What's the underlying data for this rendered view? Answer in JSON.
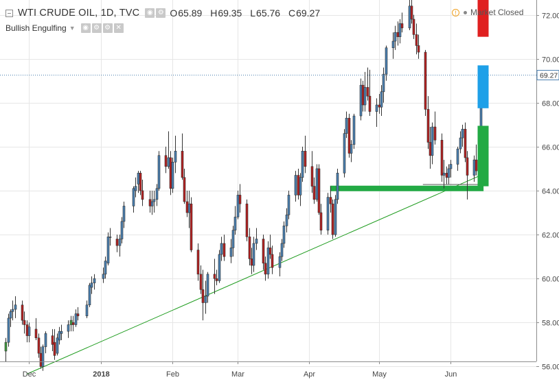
{
  "header": {
    "title": "WTI CRUDE OIL, 1D, TVC",
    "ohlc": [
      {
        "k": "O",
        "v": "65.89"
      },
      {
        "k": "H",
        "v": "69.35"
      },
      {
        "k": "L",
        "v": "65.76"
      },
      {
        "k": "C",
        "v": "69.27"
      }
    ],
    "indicator": "Bullish Engulfing",
    "market_status": "Market Closed",
    "icons": [
      "collapse-icon",
      "eye-icon",
      "settings-icon",
      "close-icon",
      "clock-icon"
    ]
  },
  "chart_data": {
    "type": "candlestick",
    "title": "WTI CRUDE OIL, 1D, TVC",
    "x_tick_labels": [
      {
        "label": "Dec",
        "day": 0
      },
      {
        "label": "2018",
        "day": 31
      },
      {
        "label": "Feb",
        "day": 62
      },
      {
        "label": "Mar",
        "day": 90
      },
      {
        "label": "Apr",
        "day": 121
      },
      {
        "label": "May",
        "day": 151
      },
      {
        "label": "Jun",
        "day": 182
      }
    ],
    "y_ticks": [
      "56.00",
      "58.00",
      "60.00",
      "62.00",
      "64.00",
      "66.00",
      "68.00",
      "70.00",
      "72.00"
    ],
    "ylim": [
      55.1,
      73.9
    ],
    "last_price": "69.27",
    "colors": {
      "up": "#4a7fb0",
      "down": "#b32020",
      "bull": "#3f9a3f",
      "grid": "#e6e6e6",
      "trend": "#1a9a1a"
    },
    "candles": [
      [
        -10,
        56.7,
        57.3,
        56.2,
        57.1
      ],
      [
        -9,
        57.1,
        58.4,
        56.9,
        58.2
      ],
      [
        -8,
        58.2,
        58.6,
        57.8,
        58.5
      ],
      [
        -7,
        58.5,
        59.0,
        58.1,
        58.6
      ],
      [
        -6,
        58.6,
        59.2,
        58.2,
        58.8
      ],
      [
        -3,
        58.8,
        59.0,
        57.9,
        58.1
      ],
      [
        -2,
        58.1,
        58.5,
        57.5,
        57.9
      ],
      [
        -1,
        57.9,
        58.1,
        57.1,
        57.4
      ],
      [
        0,
        57.4,
        58.0,
        57.1,
        57.8
      ],
      [
        3,
        57.7,
        58.2,
        57.2,
        57.3
      ],
      [
        4,
        57.3,
        57.5,
        56.4,
        56.6
      ],
      [
        5,
        56.6,
        56.9,
        55.9,
        56.0
      ],
      [
        6,
        56.0,
        57.0,
        55.8,
        56.9
      ],
      [
        7,
        56.9,
        57.6,
        56.6,
        57.5
      ],
      [
        10,
        57.4,
        57.7,
        56.7,
        57.0
      ],
      [
        11,
        57.1,
        57.7,
        56.3,
        56.5
      ],
      [
        12,
        56.6,
        57.5,
        56.5,
        57.3
      ],
      [
        13,
        57.2,
        57.8,
        57.0,
        57.6
      ],
      [
        14,
        57.5,
        57.9,
        57.2,
        57.6
      ],
      [
        17,
        57.6,
        58.1,
        57.3,
        57.9
      ],
      [
        18,
        57.9,
        58.3,
        57.6,
        58.1
      ],
      [
        19,
        58.0,
        58.3,
        57.6,
        57.9
      ],
      [
        20,
        57.9,
        58.6,
        57.8,
        58.4
      ],
      [
        21,
        58.4,
        58.7,
        58.1,
        58.3
      ],
      [
        25,
        58.3,
        59.0,
        58.2,
        58.8
      ],
      [
        26,
        58.8,
        59.8,
        58.7,
        59.7
      ],
      [
        27,
        59.6,
        60.1,
        59.3,
        59.8
      ],
      [
        28,
        59.8,
        60.2,
        59.5,
        60.0
      ],
      [
        32,
        60.0,
        60.5,
        59.8,
        60.2
      ],
      [
        33,
        60.2,
        61.0,
        60.0,
        60.8
      ],
      [
        34,
        60.7,
        62.1,
        60.6,
        61.9
      ],
      [
        35,
        61.9,
        62.3,
        61.5,
        61.9
      ],
      [
        38,
        61.8,
        62.0,
        61.2,
        61.5
      ],
      [
        39,
        61.5,
        62.0,
        61.0,
        61.8
      ],
      [
        40,
        61.8,
        62.8,
        61.6,
        62.6
      ],
      [
        41,
        62.6,
        63.5,
        62.3,
        63.3
      ],
      [
        45,
        63.3,
        64.2,
        63.0,
        64.1
      ],
      [
        46,
        64.0,
        64.6,
        63.7,
        64.2
      ],
      [
        47,
        64.3,
        64.9,
        63.9,
        64.8
      ],
      [
        48,
        64.8,
        64.9,
        63.8,
        64.0
      ],
      [
        49,
        64.0,
        64.5,
        63.3,
        63.6
      ],
      [
        52,
        63.6,
        64.0,
        63.0,
        63.3
      ],
      [
        53,
        63.3,
        64.0,
        62.9,
        63.5
      ],
      [
        54,
        63.5,
        64.0,
        63.0,
        63.6
      ],
      [
        55,
        63.6,
        64.3,
        63.3,
        64.1
      ],
      [
        56,
        64.1,
        65.8,
        64.0,
        65.6
      ],
      [
        59,
        65.6,
        66.0,
        64.8,
        65.1
      ],
      [
        60,
        65.1,
        66.7,
        65.0,
        65.5
      ],
      [
        61,
        65.5,
        65.8,
        63.8,
        64.1
      ],
      [
        62,
        64.1,
        65.5,
        63.9,
        65.3
      ],
      [
        63,
        65.3,
        66.5,
        64.8,
        65.8
      ],
      [
        66,
        65.8,
        66.6,
        64.5,
        64.6
      ],
      [
        67,
        64.6,
        65.0,
        63.4,
        63.5
      ],
      [
        68,
        63.5,
        64.0,
        62.8,
        63.0
      ],
      [
        69,
        63.0,
        64.0,
        62.3,
        63.4
      ],
      [
        70,
        63.4,
        63.7,
        61.2,
        61.3
      ],
      [
        73,
        61.3,
        61.6,
        59.9,
        60.2
      ],
      [
        74,
        60.2,
        60.6,
        59.3,
        59.5
      ],
      [
        75,
        59.5,
        60.4,
        58.1,
        58.9
      ],
      [
        76,
        58.9,
        59.9,
        58.4,
        59.2
      ],
      [
        77,
        59.2,
        60.3,
        58.9,
        60.2
      ],
      [
        80,
        60.2,
        60.9,
        59.3,
        60.0
      ],
      [
        81,
        60.0,
        60.4,
        59.7,
        59.9
      ],
      [
        82,
        59.9,
        61.3,
        59.8,
        61.1
      ],
      [
        83,
        61.1,
        61.9,
        60.8,
        61.6
      ],
      [
        84,
        61.6,
        62.0,
        60.8,
        61.0
      ],
      [
        87,
        61.0,
        61.8,
        60.7,
        61.4
      ],
      [
        88,
        61.4,
        62.4,
        61.0,
        62.2
      ],
      [
        89,
        62.2,
        63.3,
        62.0,
        62.8
      ],
      [
        90,
        62.8,
        64.0,
        62.7,
        63.8
      ],
      [
        91,
        63.8,
        64.3,
        63.0,
        63.4
      ],
      [
        94,
        63.4,
        63.6,
        61.7,
        61.9
      ],
      [
        95,
        61.9,
        62.3,
        60.6,
        60.9
      ],
      [
        96,
        60.9,
        61.4,
        60.2,
        60.6
      ],
      [
        97,
        60.6,
        61.9,
        60.3,
        61.6
      ],
      [
        98,
        61.6,
        62.3,
        61.3,
        61.8
      ],
      [
        101,
        61.8,
        62.0,
        60.4,
        60.7
      ],
      [
        102,
        60.7,
        61.0,
        59.9,
        60.2
      ],
      [
        103,
        60.2,
        61.7,
        60.0,
        61.4
      ],
      [
        104,
        61.4,
        62.0,
        60.9,
        61.1
      ],
      [
        105,
        61.1,
        61.5,
        60.2,
        60.5
      ],
      [
        108,
        60.5,
        61.2,
        60.1,
        61.0
      ],
      [
        109,
        61.0,
        61.8,
        60.8,
        61.6
      ],
      [
        110,
        61.6,
        62.6,
        61.4,
        62.4
      ],
      [
        111,
        62.4,
        63.2,
        62.1,
        62.9
      ],
      [
        112,
        62.9,
        64.0,
        62.7,
        63.8
      ],
      [
        115,
        63.8,
        64.9,
        63.5,
        64.7
      ],
      [
        116,
        64.7,
        65.0,
        63.6,
        63.8
      ],
      [
        117,
        63.8,
        64.8,
        63.3,
        64.6
      ],
      [
        118,
        64.6,
        66.0,
        64.4,
        65.8
      ],
      [
        119,
        65.8,
        66.5,
        64.8,
        65.1
      ],
      [
        122,
        65.1,
        65.8,
        63.9,
        64.2
      ],
      [
        123,
        64.2,
        64.6,
        63.4,
        63.6
      ],
      [
        124,
        63.6,
        65.2,
        63.5,
        65.0
      ],
      [
        125,
        65.0,
        65.2,
        62.9,
        63.0
      ],
      [
        126,
        63.0,
        63.4,
        62.0,
        62.2
      ],
      [
        129,
        62.2,
        63.9,
        62.0,
        63.7
      ],
      [
        130,
        63.7,
        64.2,
        63.0,
        63.4
      ],
      [
        131,
        63.4,
        63.6,
        61.8,
        62.0
      ],
      [
        132,
        62.0,
        63.8,
        61.9,
        63.6
      ],
      [
        133,
        63.6,
        65.0,
        63.4,
        64.8
      ],
      [
        136,
        64.8,
        66.8,
        64.6,
        66.6
      ],
      [
        137,
        66.6,
        67.6,
        66.4,
        67.3
      ],
      [
        138,
        67.3,
        67.5,
        65.5,
        65.7
      ],
      [
        139,
        65.7,
        66.3,
        65.3,
        66.1
      ],
      [
        140,
        66.1,
        67.5,
        65.9,
        67.4
      ],
      [
        143,
        67.4,
        69.1,
        67.2,
        68.8
      ],
      [
        144,
        68.8,
        69.0,
        67.6,
        67.9
      ],
      [
        145,
        67.9,
        69.4,
        67.6,
        68.7
      ],
      [
        146,
        68.7,
        69.6,
        68.1,
        68.3
      ],
      [
        147,
        68.3,
        69.5,
        67.4,
        67.6
      ],
      [
        150,
        67.6,
        68.2,
        66.9,
        67.9
      ],
      [
        151,
        67.9,
        68.4,
        67.5,
        67.8
      ],
      [
        152,
        67.8,
        68.8,
        67.4,
        68.5
      ],
      [
        153,
        68.5,
        69.6,
        68.0,
        69.3
      ],
      [
        154,
        69.3,
        70.6,
        69.0,
        70.5
      ],
      [
        157,
        70.5,
        71.2,
        70.0,
        70.8
      ],
      [
        158,
        70.8,
        71.5,
        70.4,
        71.2
      ],
      [
        159,
        71.2,
        71.7,
        70.6,
        71.0
      ],
      [
        160,
        71.0,
        71.8,
        70.7,
        71.6
      ],
      [
        161,
        71.6,
        72.1,
        71.2,
        71.4
      ],
      [
        164,
        71.4,
        72.7,
        71.3,
        72.4
      ],
      [
        165,
        72.4,
        72.9,
        71.6,
        71.8
      ],
      [
        166,
        71.8,
        72.0,
        70.9,
        71.1
      ],
      [
        167,
        71.1,
        71.6,
        70.2,
        70.6
      ],
      [
        168,
        70.6,
        71.1,
        70.0,
        70.3
      ],
      [
        171,
        70.3,
        70.4,
        67.4,
        67.7
      ],
      [
        172,
        67.7,
        68.3,
        65.9,
        66.2
      ],
      [
        173,
        66.2,
        66.9,
        65.0,
        65.6
      ],
      [
        174,
        65.6,
        67.1,
        65.2,
        66.9
      ],
      [
        175,
        66.9,
        67.6,
        66.1,
        66.3
      ],
      [
        178,
        66.3,
        66.6,
        64.4,
        64.7
      ],
      [
        179,
        64.7,
        65.4,
        64.1,
        64.8
      ],
      [
        180,
        64.8,
        65.1,
        64.3,
        64.6
      ],
      [
        181,
        64.6,
        65.2,
        64.3,
        65.0
      ],
      [
        182,
        65.0,
        65.4,
        64.6,
        65.2
      ],
      [
        185,
        65.2,
        66.0,
        64.9,
        65.9
      ],
      [
        186,
        65.9,
        66.7,
        65.7,
        66.4
      ],
      [
        187,
        66.4,
        67.0,
        66.0,
        66.8
      ],
      [
        188,
        66.8,
        67.1,
        65.3,
        65.5
      ],
      [
        189,
        65.5,
        65.8,
        63.6,
        64.7
      ],
      [
        192,
        64.7,
        65.6,
        64.4,
        65.4
      ],
      [
        193,
        65.4,
        66.1,
        64.7,
        64.9
      ],
      [
        194,
        64.9,
        66.0,
        64.7,
        65.9
      ],
      [
        195,
        65.9,
        69.35,
        65.76,
        69.27
      ]
    ],
    "trendline": [
      [
        -1,
        55.65
      ],
      [
        195,
        64.7
      ]
    ],
    "support_marker": [
      [
        130,
        64.1
      ],
      [
        195,
        64.1
      ]
    ],
    "overlays": [
      {
        "type": "hline",
        "from_day": 163,
        "to_day": 196,
        "y": 72.85,
        "color": "#e02020"
      },
      {
        "type": "vbar",
        "day": 196,
        "y1": 73.2,
        "y2": 71.0,
        "color": "#e02020"
      },
      {
        "type": "vbar",
        "day": 196,
        "y1": 69.7,
        "y2": 67.75,
        "color": "#1ea0e8"
      },
      {
        "type": "vbar",
        "day": 196,
        "y1": 66.95,
        "y2": 64.2,
        "color": "#22aa44"
      }
    ]
  }
}
